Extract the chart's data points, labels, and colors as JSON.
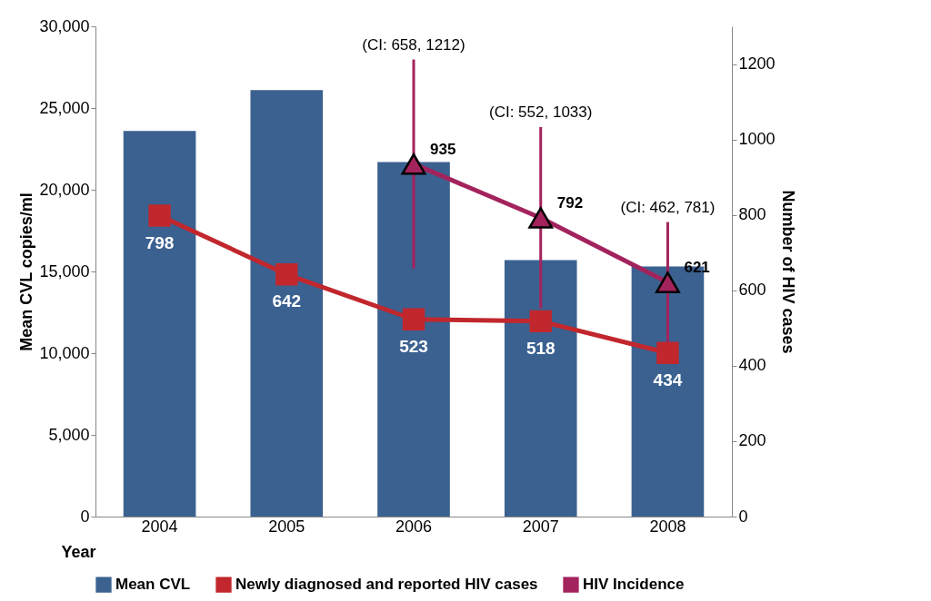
{
  "chart_data": {
    "type": "bar",
    "categories": [
      "2004",
      "2005",
      "2006",
      "2007",
      "2008"
    ],
    "xlabel": "Year",
    "ylabel": "Mean CVL copies/ml",
    "y2label": "Number of HIV cases",
    "ylim": [
      0,
      30000
    ],
    "yticks": [
      0,
      {
        "value": 5000,
        "label": "5,000"
      },
      {
        "value": 10000,
        "label": "10,000"
      },
      {
        "value": 15000,
        "label": "15,000"
      },
      {
        "value": 20000,
        "label": "20,000"
      },
      {
        "value": 25000,
        "label": "25,000"
      },
      {
        "value": 30000,
        "label": "30,000"
      }
    ],
    "y2lim": [
      0,
      1300
    ],
    "y2ticks": [
      0,
      200,
      400,
      600,
      800,
      1000,
      1200
    ],
    "legend": "bottom",
    "grid": false,
    "series": [
      {
        "name": "Mean CVL",
        "color": "#3b6190",
        "values": [
          23600,
          26100,
          21700,
          15700,
          15300
        ]
      },
      {
        "name": "Newly diagnosed and reported HIV cases",
        "type": "line",
        "axis": "y2",
        "color": "#c1272d",
        "marker": "square",
        "values": [
          798,
          642,
          523,
          518,
          434
        ],
        "value_labels": [
          "798",
          "642",
          "523",
          "518",
          "434"
        ]
      },
      {
        "name": "HIV Incidence",
        "type": "line",
        "axis": "y2",
        "color": "#a3235c",
        "marker": "triangle",
        "values": [
          null,
          null,
          935,
          792,
          621
        ],
        "value_labels": [
          null,
          null,
          "935",
          "792",
          "621"
        ],
        "errors": [
          null,
          null,
          [
            658,
            1212
          ],
          [
            552,
            1033
          ],
          [
            462,
            781
          ]
        ]
      }
    ],
    "annotations": [
      "(CI: 658, 1212)",
      "(CI: 552, 1033)",
      "(CI: 462, 781)"
    ]
  }
}
